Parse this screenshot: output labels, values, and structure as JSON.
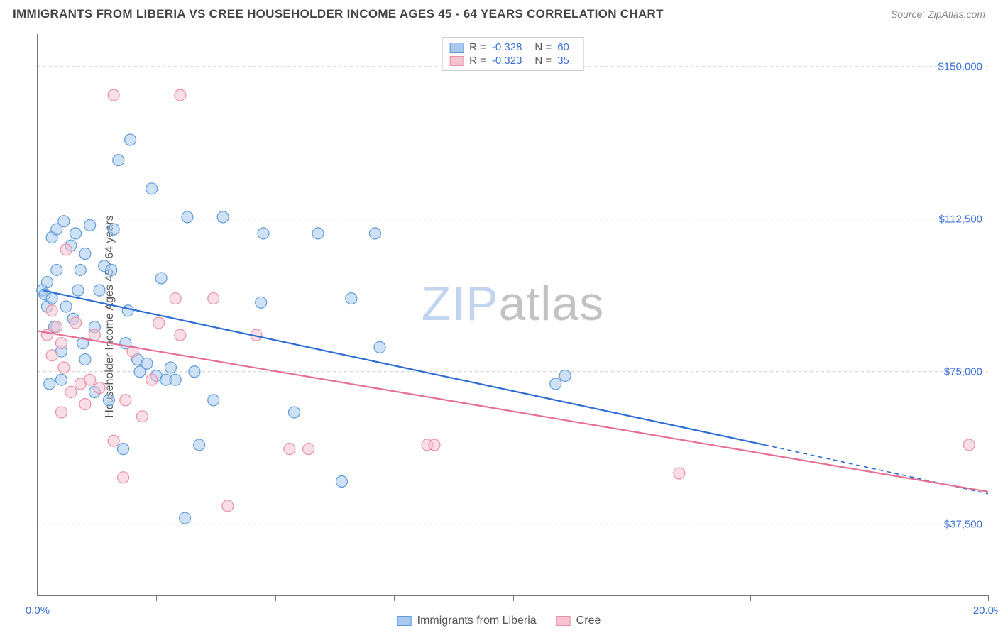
{
  "header": {
    "title": "IMMIGRANTS FROM LIBERIA VS CREE HOUSEHOLDER INCOME AGES 45 - 64 YEARS CORRELATION CHART",
    "source_prefix": "Source: ",
    "source_name": "ZipAtlas.com"
  },
  "chart": {
    "type": "scatter",
    "ylabel": "Householder Income Ages 45 - 64 years",
    "xlim": [
      0,
      20
    ],
    "ylim": [
      20000,
      158000
    ],
    "x_tick_positions": [
      0,
      2.5,
      5,
      7.5,
      10,
      12.5,
      15,
      17.5,
      20
    ],
    "x_tick_labels": {
      "0": "0.0%",
      "20": "20.0%"
    },
    "y_gridlines": [
      37500,
      75000,
      112500,
      150000
    ],
    "y_tick_labels": [
      "$37,500",
      "$75,000",
      "$112,500",
      "$150,000"
    ],
    "grid_color": "#cccccc",
    "background_color": "#ffffff",
    "axis_color": "#777777",
    "tick_label_color": "#3b6fd6",
    "label_fontsize": 16,
    "marker_radius": 8,
    "marker_opacity": 0.55,
    "series": [
      {
        "name": "Immigrants from Liberia",
        "fill": "#a8c8ef",
        "stroke": "#5e9bd8",
        "line_color": "#2d6cd0",
        "r_value": "-0.328",
        "n_value": "60",
        "trend": {
          "x1": 0.1,
          "y1": 95000,
          "x2": 15.3,
          "y2": 57000,
          "dash_x2": 20.0,
          "dash_y2": 45000
        },
        "points": [
          [
            0.1,
            95000
          ],
          [
            0.15,
            94000
          ],
          [
            0.2,
            97000
          ],
          [
            0.2,
            91000
          ],
          [
            0.25,
            72000
          ],
          [
            0.3,
            108000
          ],
          [
            0.3,
            93000
          ],
          [
            0.35,
            86000
          ],
          [
            0.4,
            110000
          ],
          [
            0.4,
            100000
          ],
          [
            0.5,
            80000
          ],
          [
            0.5,
            73000
          ],
          [
            0.55,
            112000
          ],
          [
            0.6,
            91000
          ],
          [
            0.7,
            106000
          ],
          [
            0.75,
            88000
          ],
          [
            0.8,
            109000
          ],
          [
            0.85,
            95000
          ],
          [
            0.9,
            100000
          ],
          [
            0.95,
            82000
          ],
          [
            1.0,
            78000
          ],
          [
            1.0,
            104000
          ],
          [
            1.1,
            111000
          ],
          [
            1.2,
            70000
          ],
          [
            1.2,
            86000
          ],
          [
            1.3,
            95000
          ],
          [
            1.4,
            101000
          ],
          [
            1.5,
            68000
          ],
          [
            1.55,
            100000
          ],
          [
            1.6,
            110000
          ],
          [
            1.7,
            127000
          ],
          [
            1.8,
            56000
          ],
          [
            1.85,
            82000
          ],
          [
            1.9,
            90000
          ],
          [
            1.95,
            132000
          ],
          [
            2.1,
            78000
          ],
          [
            2.15,
            75000
          ],
          [
            2.3,
            77000
          ],
          [
            2.4,
            120000
          ],
          [
            2.5,
            74000
          ],
          [
            2.6,
            98000
          ],
          [
            2.7,
            73000
          ],
          [
            2.8,
            76000
          ],
          [
            2.9,
            73000
          ],
          [
            3.1,
            39000
          ],
          [
            3.15,
            113000
          ],
          [
            3.3,
            75000
          ],
          [
            3.4,
            57000
          ],
          [
            3.7,
            68000
          ],
          [
            3.9,
            113000
          ],
          [
            4.7,
            92000
          ],
          [
            4.75,
            109000
          ],
          [
            5.4,
            65000
          ],
          [
            5.9,
            109000
          ],
          [
            6.4,
            48000
          ],
          [
            6.6,
            93000
          ],
          [
            7.1,
            109000
          ],
          [
            7.2,
            81000
          ],
          [
            10.9,
            72000
          ],
          [
            11.1,
            74000
          ]
        ]
      },
      {
        "name": "Cree",
        "fill": "#f4c3cf",
        "stroke": "#e890a8",
        "line_color": "#e56f94",
        "r_value": "-0.323",
        "n_value": "35",
        "trend": {
          "x1": 0.0,
          "y1": 85000,
          "x2": 20.0,
          "y2": 45500,
          "dash_x2": 20.0,
          "dash_y2": 45500
        },
        "points": [
          [
            0.2,
            84000
          ],
          [
            0.3,
            90000
          ],
          [
            0.3,
            79000
          ],
          [
            0.4,
            86000
          ],
          [
            0.5,
            65000
          ],
          [
            0.5,
            82000
          ],
          [
            0.55,
            76000
          ],
          [
            0.6,
            105000
          ],
          [
            0.7,
            70000
          ],
          [
            0.8,
            87000
          ],
          [
            0.9,
            72000
          ],
          [
            1.0,
            67000
          ],
          [
            1.1,
            73000
          ],
          [
            1.2,
            84000
          ],
          [
            1.3,
            71000
          ],
          [
            1.6,
            58000
          ],
          [
            1.6,
            143000
          ],
          [
            1.8,
            49000
          ],
          [
            1.85,
            68000
          ],
          [
            2.0,
            80000
          ],
          [
            2.2,
            64000
          ],
          [
            2.4,
            73000
          ],
          [
            2.55,
            87000
          ],
          [
            2.9,
            93000
          ],
          [
            3.0,
            143000
          ],
          [
            3.0,
            84000
          ],
          [
            3.7,
            93000
          ],
          [
            4.0,
            42000
          ],
          [
            4.6,
            84000
          ],
          [
            5.3,
            56000
          ],
          [
            5.7,
            56000
          ],
          [
            8.2,
            57000
          ],
          [
            8.35,
            57000
          ],
          [
            13.5,
            50000
          ],
          [
            19.6,
            57000
          ]
        ]
      }
    ],
    "watermark": {
      "part1": "ZIP",
      "part2": "atlas"
    }
  },
  "legend_top": {
    "r_label": "R =",
    "n_label": "N ="
  },
  "legend_bottom": {
    "items": [
      "Immigrants from Liberia",
      "Cree"
    ]
  }
}
